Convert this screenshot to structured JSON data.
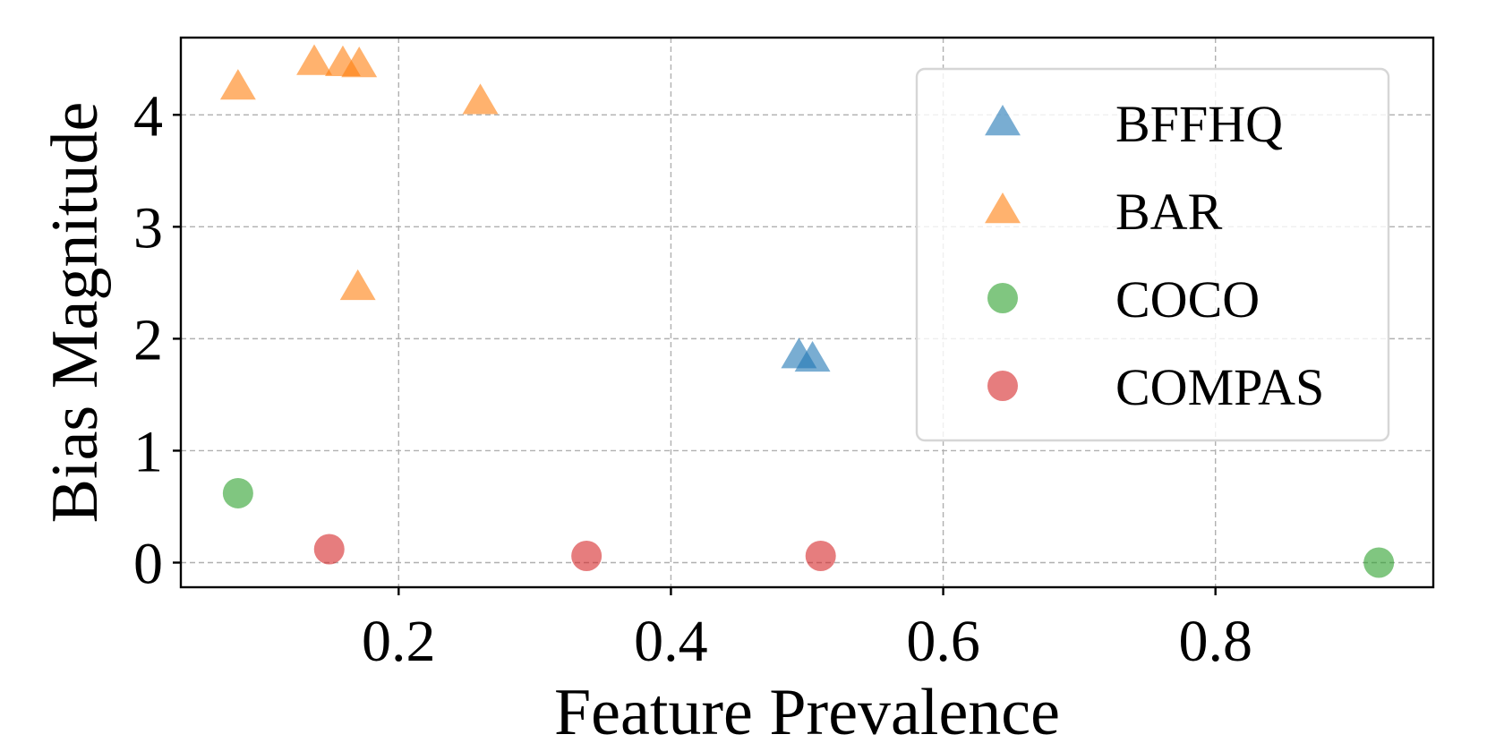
{
  "chart_data": {
    "type": "scatter",
    "title": "",
    "xlabel": "Feature Prevalence",
    "ylabel": "Bias Magnitude",
    "xlim": [
      0.04,
      0.96
    ],
    "ylim": [
      -0.22,
      4.69
    ],
    "xticks": [
      0.2,
      0.4,
      0.6,
      0.8
    ],
    "xtick_labels": [
      "0.2",
      "0.4",
      "0.6",
      "0.8"
    ],
    "yticks": [
      0,
      1,
      2,
      3,
      4
    ],
    "ytick_labels": [
      "0",
      "1",
      "2",
      "3",
      "4"
    ],
    "grid": true,
    "legend_position": "top-right",
    "series": [
      {
        "name": "BFFHQ",
        "marker": "triangle",
        "color": "#1f77b4",
        "points": [
          {
            "x": 0.494,
            "y": 1.85
          },
          {
            "x": 0.504,
            "y": 1.82
          }
        ]
      },
      {
        "name": "BAR",
        "marker": "triangle",
        "color": "#ff7f0e",
        "points": [
          {
            "x": 0.082,
            "y": 4.25
          },
          {
            "x": 0.138,
            "y": 4.47
          },
          {
            "x": 0.159,
            "y": 4.46
          },
          {
            "x": 0.171,
            "y": 4.45
          },
          {
            "x": 0.26,
            "y": 4.12
          },
          {
            "x": 0.17,
            "y": 2.46
          }
        ]
      },
      {
        "name": "COCO",
        "marker": "circle",
        "color": "#2ca02c",
        "points": [
          {
            "x": 0.082,
            "y": 0.62
          },
          {
            "x": 0.92,
            "y": 0.0
          }
        ]
      },
      {
        "name": "COMPAS",
        "marker": "circle",
        "color": "#d62728",
        "points": [
          {
            "x": 0.149,
            "y": 0.12
          },
          {
            "x": 0.338,
            "y": 0.06
          },
          {
            "x": 0.51,
            "y": 0.06
          }
        ]
      }
    ]
  }
}
